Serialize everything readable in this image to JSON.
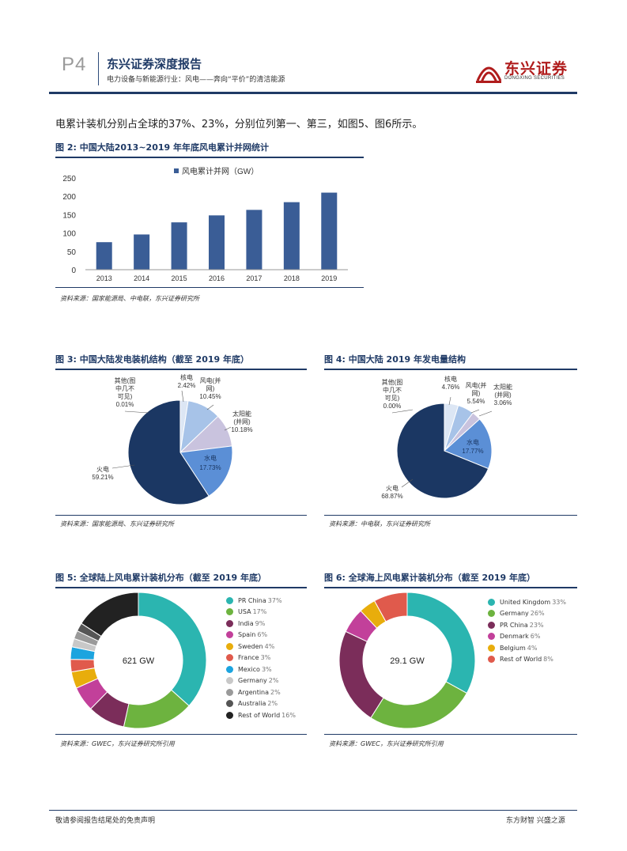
{
  "header": {
    "page": "P4",
    "title": "东兴证券深度报告",
    "subtitle": "电力设备与新能源行业：风电——奔向“平价”的清洁能源",
    "logo_name": "东兴证券",
    "logo_en": "DONGXING SECURITIES"
  },
  "body": {
    "line": "电累计装机分别占全球的37%、23%，分别位列第一、第三，如图5、图6所示。"
  },
  "figures": {
    "fig2": {
      "title": "图 2: 中国大陆2013~2019 年年底风电累计并网统计",
      "source": "资料来源：国家能源局、中电联，东兴证券研究所"
    },
    "fig3": {
      "title": "图 3: 中国大陆发电装机结构（截至 2019 年底）",
      "source": "资料来源：国家能源局、东兴证券研究所"
    },
    "fig4": {
      "title": "图 4: 中国大陆 2019 年发电量结构",
      "source": "资料来源：中电联，东兴证券研究所"
    },
    "fig5": {
      "title": "图 5: 全球陆上风电累计装机分布（截至 2019 年底）",
      "source": "资料来源：GWEC，东兴证券研究所引用"
    },
    "fig6": {
      "title": "图 6: 全球海上风电累计装机分布（截至 2019 年底）",
      "source": "资料来源：GWEC，东兴证券研究所引用"
    }
  },
  "colors": {
    "navy": "#1f3a66",
    "bar": "#3a5d96"
  },
  "chart_data": [
    {
      "id": "fig2",
      "type": "bar",
      "legend": "风电累计并网（GW）",
      "categories": [
        "2013",
        "2014",
        "2015",
        "2016",
        "2017",
        "2018",
        "2019"
      ],
      "values": [
        75,
        96,
        129,
        148,
        163,
        184,
        210
      ],
      "yticks": [
        "0",
        "50",
        "100",
        "150",
        "200",
        "250"
      ],
      "ylim": [
        0,
        250
      ]
    },
    {
      "id": "fig3",
      "type": "pie",
      "slices": [
        {
          "name": "核电",
          "label": "核电",
          "pct": "2.42%",
          "value": 2.42,
          "color": "#dce6f4"
        },
        {
          "name": "风电",
          "label": "风电(并网)",
          "pct": "10.45%",
          "value": 10.45,
          "color": "#a7c3e8"
        },
        {
          "name": "太阳能",
          "label": "太阳能(并网)",
          "pct": "10.18%",
          "value": 10.18,
          "color": "#c9c3de"
        },
        {
          "name": "水电",
          "label": "水电",
          "pct": "17.73%",
          "value": 17.73,
          "color": "#5b8fd6"
        },
        {
          "name": "火电",
          "label": "火电",
          "pct": "59.21%",
          "value": 59.21,
          "color": "#1b3763"
        },
        {
          "name": "其他",
          "label": "其他(图中几不可见)",
          "pct": "0.01%",
          "value": 0.01,
          "color": "#1b3763"
        }
      ]
    },
    {
      "id": "fig4",
      "type": "pie",
      "slices": [
        {
          "name": "核电",
          "label": "核电",
          "pct": "4.76%",
          "value": 4.76,
          "color": "#dce6f4"
        },
        {
          "name": "风电",
          "label": "风电(并网)",
          "pct": "5.54%",
          "value": 5.54,
          "color": "#a7c3e8"
        },
        {
          "name": "太阳能",
          "label": "太阳能(并网)",
          "pct": "3.06%",
          "value": 3.06,
          "color": "#c9c3de"
        },
        {
          "name": "水电",
          "label": "水电",
          "pct": "17.77%",
          "value": 17.77,
          "color": "#5b8fd6"
        },
        {
          "name": "火电",
          "label": "火电",
          "pct": "68.87%",
          "value": 68.87,
          "color": "#1b3763"
        },
        {
          "name": "其他",
          "label": "其他(图中几不可见)",
          "pct": "0.00%",
          "value": 0.0,
          "color": "#1b3763"
        }
      ]
    },
    {
      "id": "fig5",
      "type": "pie",
      "center": "621 GW",
      "slices": [
        {
          "name": "PR China",
          "pct": "37%",
          "value": 37,
          "color": "#2bb5b0"
        },
        {
          "name": "USA",
          "pct": "17%",
          "value": 17,
          "color": "#6db33f"
        },
        {
          "name": "India",
          "pct": "9%",
          "value": 9,
          "color": "#7b2d5a"
        },
        {
          "name": "Spain",
          "pct": "6%",
          "value": 6,
          "color": "#c2409a"
        },
        {
          "name": "Sweden",
          "pct": "4%",
          "value": 4,
          "color": "#e8ad0c"
        },
        {
          "name": "France",
          "pct": "3%",
          "value": 3,
          "color": "#e05a4c"
        },
        {
          "name": "Mexico",
          "pct": "3%",
          "value": 3,
          "color": "#1ca4df"
        },
        {
          "name": "Germany",
          "pct": "2%",
          "value": 2,
          "color": "#c8c8c8"
        },
        {
          "name": "Argentina",
          "pct": "2%",
          "value": 2,
          "color": "#9a9a9a"
        },
        {
          "name": "Australia",
          "pct": "2%",
          "value": 2,
          "color": "#555555"
        },
        {
          "name": "Rest of World",
          "pct": "16%",
          "value": 16,
          "color": "#222222"
        }
      ]
    },
    {
      "id": "fig6",
      "type": "pie",
      "center": "29.1 GW",
      "slices": [
        {
          "name": "United Kingdom",
          "pct": "33%",
          "value": 33,
          "color": "#2bb5b0"
        },
        {
          "name": "Germany",
          "pct": "26%",
          "value": 26,
          "color": "#6db33f"
        },
        {
          "name": "PR China",
          "pct": "23%",
          "value": 23,
          "color": "#7b2d5a"
        },
        {
          "name": "Denmark",
          "pct": "6%",
          "value": 6,
          "color": "#c2409a"
        },
        {
          "name": "Belgium",
          "pct": "4%",
          "value": 4,
          "color": "#e8ad0c"
        },
        {
          "name": "Rest of World",
          "pct": "8%",
          "value": 8,
          "color": "#e05a4c"
        }
      ]
    }
  ],
  "footer": {
    "left": "敬请参阅报告结尾处的免责声明",
    "right": "东方财智 兴盛之源"
  }
}
